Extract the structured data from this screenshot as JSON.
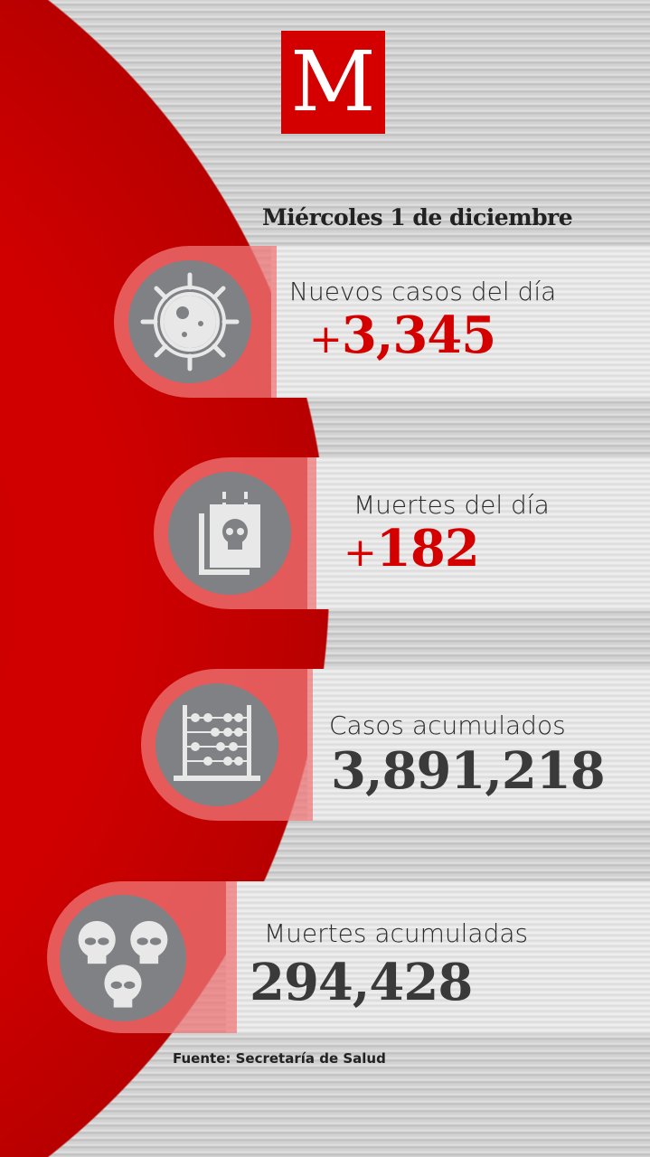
{
  "brand": {
    "logo_letter": "M",
    "color": "#d40000"
  },
  "date": "Miércoles 1 de diciembre",
  "stats": [
    {
      "label": "Nuevos casos del día",
      "prefix": "+",
      "value": "3,345",
      "icon": "virus-icon"
    },
    {
      "label": "Muertes del día",
      "prefix": "+",
      "value": "182",
      "icon": "skull-document-icon"
    },
    {
      "label": "Casos acumulados",
      "prefix": "",
      "value": "3,891,218",
      "icon": "abacus-icon"
    },
    {
      "label": "Muertes acumuladas",
      "prefix": "",
      "value": "294,428",
      "icon": "three-skulls-icon"
    }
  ],
  "source": "Fuente: Secretaría de Salud"
}
